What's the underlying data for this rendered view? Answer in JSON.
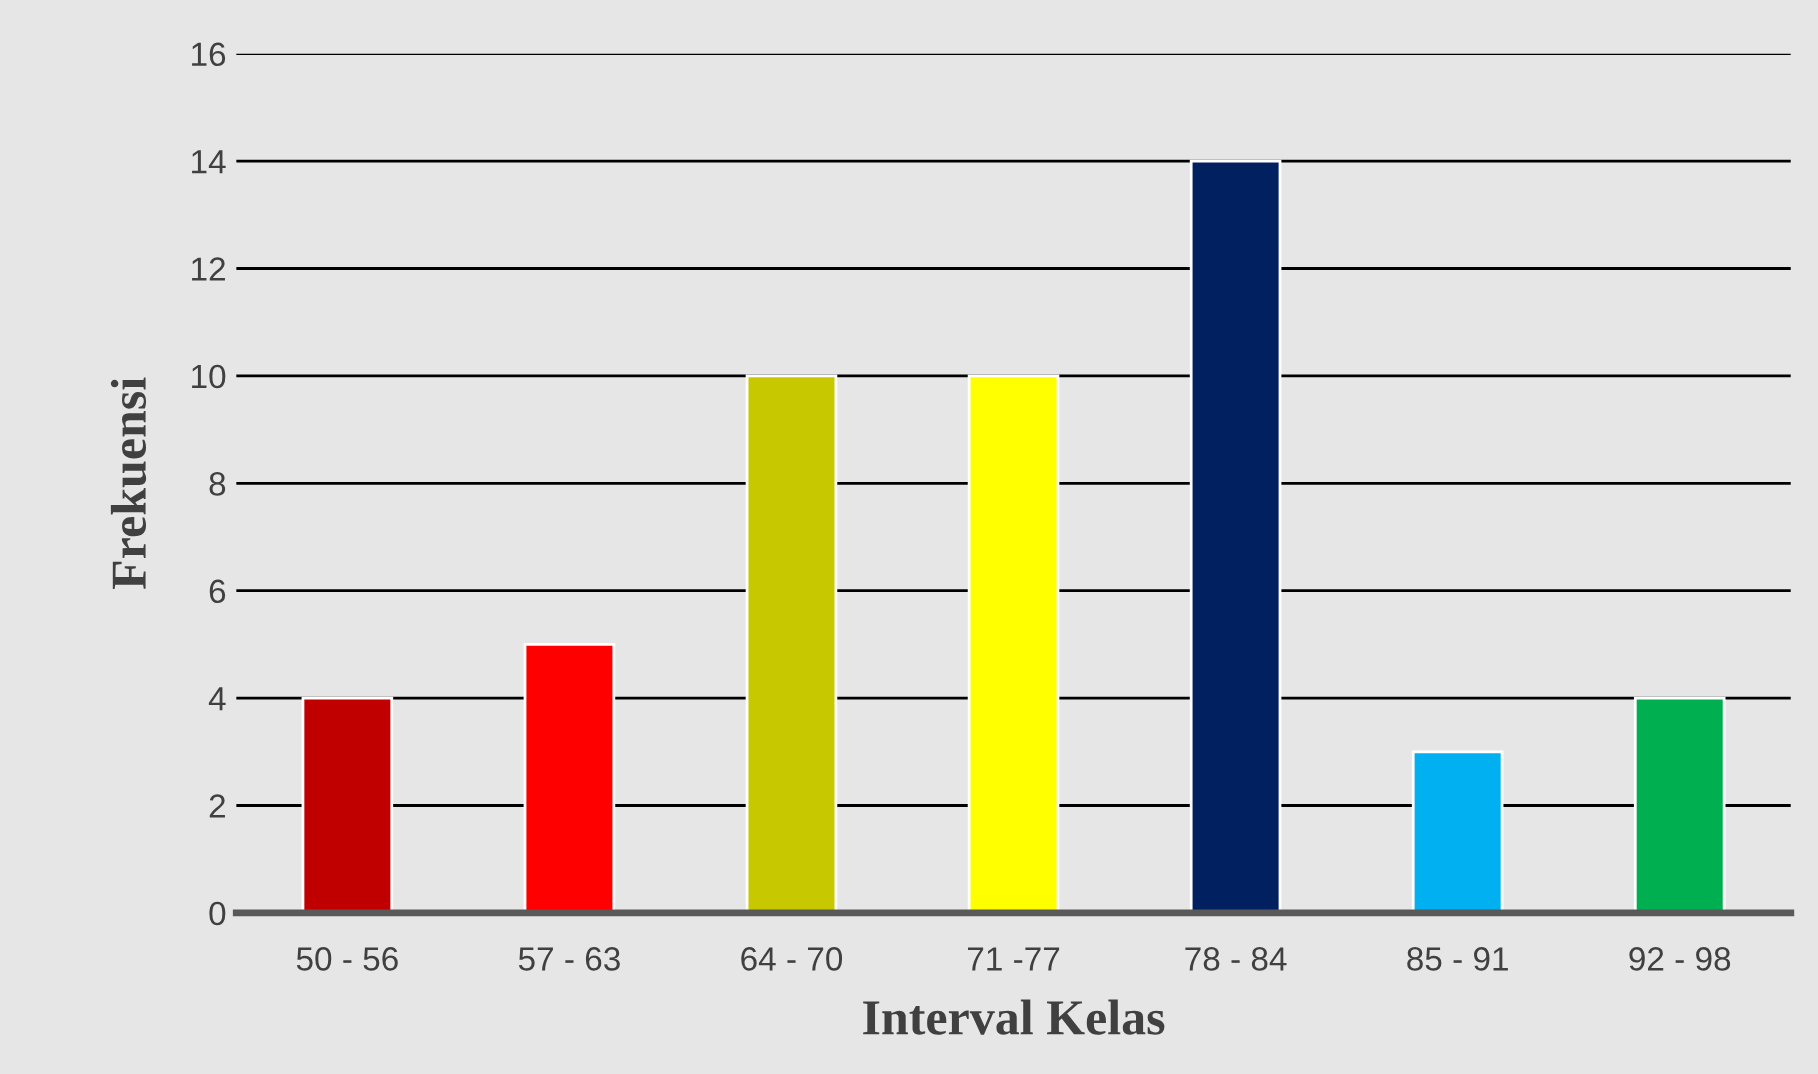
{
  "chart_data": {
    "type": "bar",
    "xlabel": "Interval Kelas",
    "ylabel": "Frekuensi",
    "categories": [
      "50 - 56",
      "57 - 63",
      "64 - 70",
      "71 -77",
      "78 - 84",
      "85 - 91",
      "92 - 98"
    ],
    "values": [
      4,
      5,
      10,
      10,
      14,
      3,
      4
    ],
    "colors": [
      "#c00000",
      "#ff0000",
      "#c8c800",
      "#ffff00",
      "#002060",
      "#00b0f0",
      "#00b050"
    ],
    "ylim": [
      0,
      16
    ],
    "yticks": [
      0,
      2,
      4,
      6,
      8,
      10,
      12,
      14,
      16
    ],
    "grid": "y",
    "legend": false
  }
}
